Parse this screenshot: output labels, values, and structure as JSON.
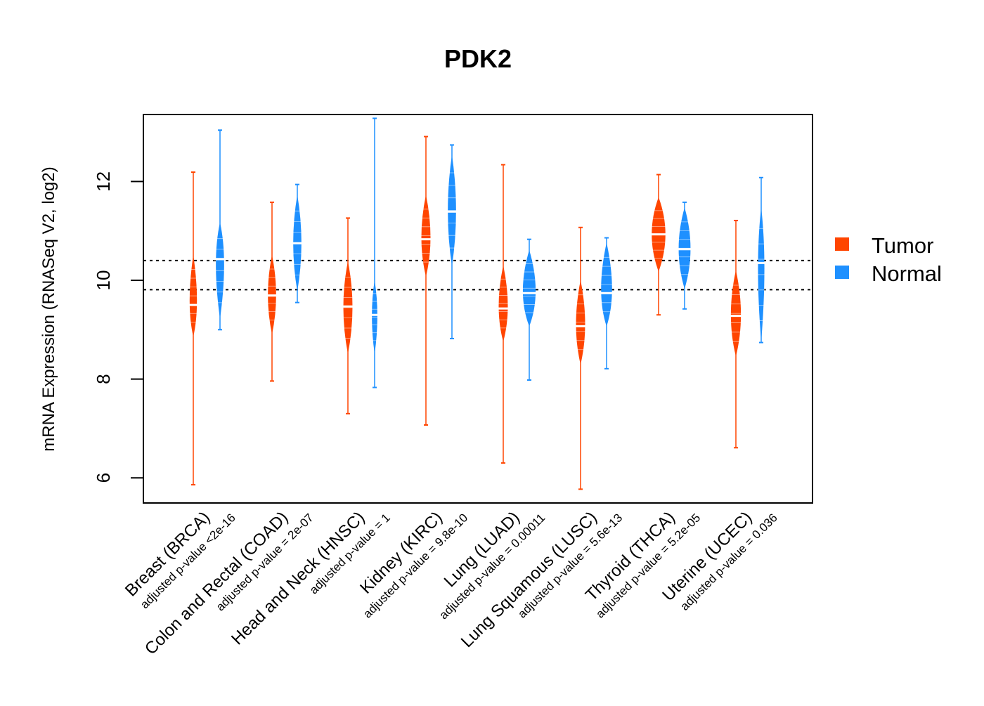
{
  "chart_data": {
    "type": "beanplot",
    "title": "PDK2",
    "xlabel": "",
    "ylabel": "mRNA Expression (RNASeq V2, log2)",
    "ylim": [
      5.49,
      13.36
    ],
    "yticks": [
      "6",
      "8",
      "10",
      "12"
    ],
    "ytick_values": [
      6,
      8,
      10,
      12
    ],
    "reference_lines": [
      10.4,
      9.81
    ],
    "legend": {
      "placement": "right",
      "entries": [
        {
          "label": "Tumor",
          "color": "#FF4500"
        },
        {
          "label": "Normal",
          "color": "#1E90FF"
        }
      ]
    },
    "categories": [
      {
        "label": "Breast (BRCA)",
        "pvalue": "adjusted p-value <2e-16",
        "tumor": {
          "min": 5.86,
          "lo": 8.97,
          "median": 9.5,
          "hi": 10.4,
          "max": 12.19
        },
        "normal": {
          "min": 9.0,
          "lo": 9.33,
          "median": 10.43,
          "hi": 11.06,
          "max": 13.04
        }
      },
      {
        "label": "Colon and Rectal (COAD)",
        "pvalue": "adjusted p-value = 2e-07",
        "tumor": {
          "min": 7.96,
          "lo": 9.02,
          "median": 9.69,
          "hi": 10.4,
          "max": 11.58
        },
        "normal": {
          "min": 9.55,
          "lo": 9.89,
          "median": 10.75,
          "hi": 11.62,
          "max": 11.94
        }
      },
      {
        "label": "Head and Neck (HNSC)",
        "pvalue": "adjusted p-value = 1",
        "tumor": {
          "min": 7.3,
          "lo": 8.62,
          "median": 9.47,
          "hi": 10.27,
          "max": 11.26
        },
        "normal": {
          "min": 7.83,
          "lo": 8.62,
          "median": 9.3,
          "hi": 9.89,
          "max": 13.28
        }
      },
      {
        "label": "Kidney (KIRC)",
        "pvalue": "adjusted p-value = 9.8e-10",
        "tumor": {
          "min": 7.07,
          "lo": 10.19,
          "median": 10.83,
          "hi": 11.62,
          "max": 12.91
        },
        "normal": {
          "min": 8.82,
          "lo": 10.4,
          "median": 11.39,
          "hi": 12.43,
          "max": 12.74
        }
      },
      {
        "label": "Lung (LUAD)",
        "pvalue": "adjusted p-value = 0.00011",
        "tumor": {
          "min": 6.3,
          "lo": 8.87,
          "median": 9.43,
          "hi": 10.19,
          "max": 12.34
        },
        "normal": {
          "min": 7.98,
          "lo": 9.18,
          "median": 9.74,
          "hi": 10.5,
          "max": 10.83
        }
      },
      {
        "label": "Lung Squamous (LUSC)",
        "pvalue": "adjusted p-value = 5.6e-13",
        "tumor": {
          "min": 5.77,
          "lo": 8.41,
          "median": 9.07,
          "hi": 9.89,
          "max": 11.07
        },
        "normal": {
          "min": 8.21,
          "lo": 9.18,
          "median": 9.74,
          "hi": 10.65,
          "max": 10.86
        }
      },
      {
        "label": "Thyroid (THCA)",
        "pvalue": "adjusted p-value = 5.2e-05",
        "tumor": {
          "min": 9.3,
          "lo": 10.29,
          "median": 10.93,
          "hi": 11.57,
          "max": 12.14
        },
        "normal": {
          "min": 9.42,
          "lo": 9.94,
          "median": 10.63,
          "hi": 11.36,
          "max": 11.58
        }
      },
      {
        "label": "Uterine (UCEC)",
        "pvalue": "adjusted p-value = 0.036",
        "tumor": {
          "min": 6.61,
          "lo": 8.57,
          "median": 9.28,
          "hi": 10.09,
          "max": 11.21
        },
        "normal": {
          "min": 8.74,
          "lo": 8.87,
          "median": 10.35,
          "hi": 11.36,
          "max": 12.08
        }
      }
    ]
  }
}
